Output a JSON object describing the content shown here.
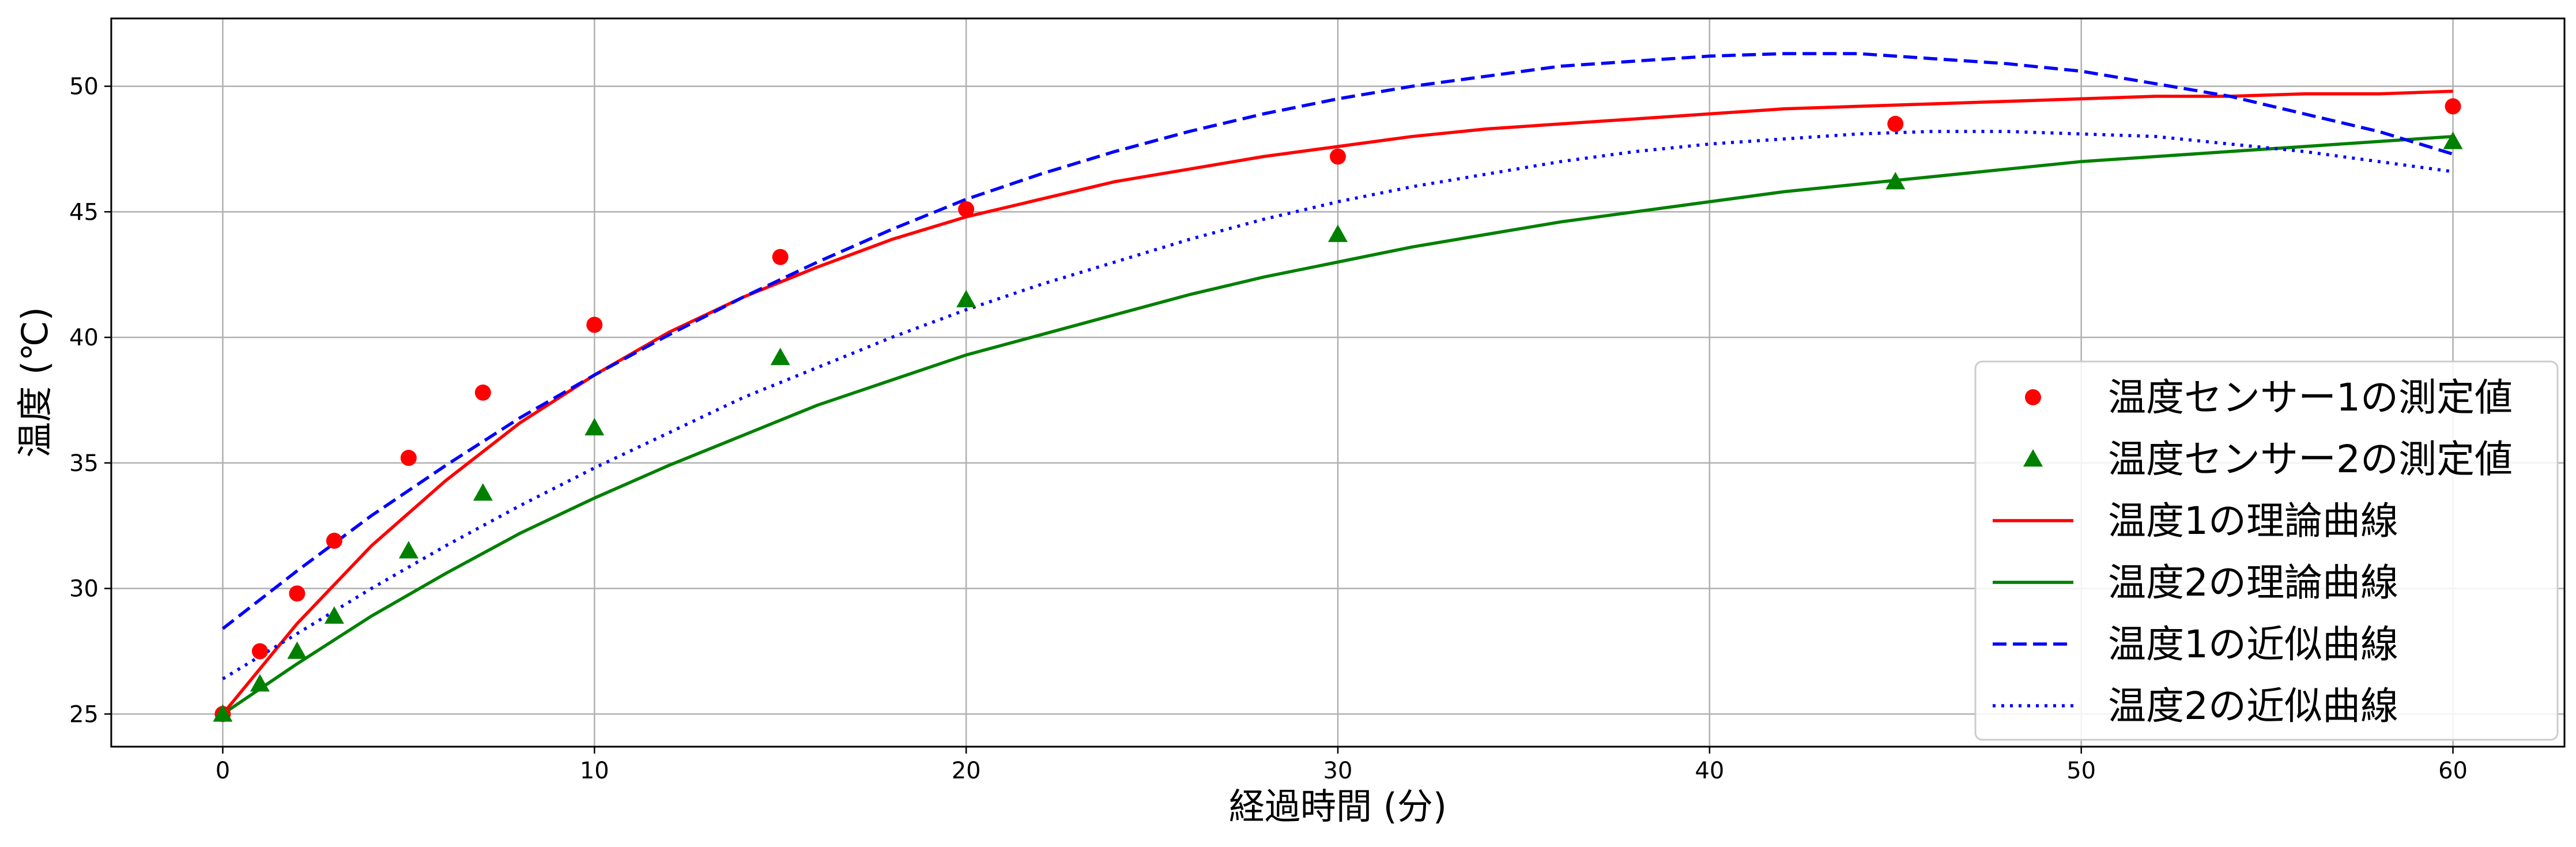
{
  "chart_data": {
    "type": "scatter",
    "title": "",
    "xlabel": "経過時間 (分)",
    "ylabel": "温度 (℃)",
    "xlim": [
      -3,
      63
    ],
    "ylim": [
      23.7,
      52.7
    ],
    "xticks": [
      0,
      10,
      20,
      30,
      40,
      50,
      60
    ],
    "yticks": [
      25,
      30,
      35,
      40,
      45,
      50
    ],
    "grid": true,
    "legend_position": "lower-right",
    "series": [
      {
        "name": "温度センサー1の測定値",
        "kind": "scatter",
        "marker": "circle",
        "color": "#ff0000",
        "x": [
          0,
          1,
          2,
          3,
          5,
          7,
          10,
          15,
          20,
          30,
          45,
          60
        ],
        "y": [
          25.0,
          27.5,
          29.8,
          31.9,
          35.2,
          37.8,
          40.5,
          43.2,
          45.1,
          47.2,
          48.5,
          49.2
        ]
      },
      {
        "name": "温度センサー2の測定値",
        "kind": "scatter",
        "marker": "triangle",
        "color": "#008000",
        "x": [
          0,
          1,
          2,
          3,
          5,
          7,
          10,
          15,
          20,
          30,
          45,
          60
        ],
        "y": [
          25.0,
          26.2,
          27.5,
          28.9,
          31.5,
          33.8,
          36.4,
          39.2,
          41.5,
          44.1,
          46.2,
          47.8
        ]
      },
      {
        "name": "温度1の理論曲線",
        "kind": "line",
        "linestyle": "solid",
        "color": "#ff0000",
        "x": [
          0,
          2,
          4,
          6,
          8,
          10,
          12,
          14,
          16,
          18,
          20,
          22,
          24,
          26,
          28,
          30,
          32,
          34,
          36,
          38,
          40,
          42,
          44,
          46,
          48,
          50,
          52,
          54,
          56,
          58,
          60
        ],
        "y": [
          25.0,
          28.6,
          31.7,
          34.3,
          36.6,
          38.5,
          40.2,
          41.6,
          42.8,
          43.9,
          44.8,
          45.5,
          46.2,
          46.7,
          47.2,
          47.6,
          48.0,
          48.3,
          48.5,
          48.7,
          48.9,
          49.1,
          49.2,
          49.3,
          49.4,
          49.5,
          49.6,
          49.6,
          49.7,
          49.7,
          49.8
        ]
      },
      {
        "name": "温度2の理論曲線",
        "kind": "line",
        "linestyle": "solid",
        "color": "#008000",
        "x": [
          0,
          2,
          4,
          6,
          8,
          10,
          12,
          14,
          16,
          18,
          20,
          22,
          24,
          26,
          28,
          30,
          32,
          34,
          36,
          38,
          40,
          42,
          44,
          46,
          48,
          50,
          52,
          54,
          56,
          58,
          60
        ],
        "y": [
          25.0,
          27.0,
          28.9,
          30.6,
          32.2,
          33.6,
          34.9,
          36.1,
          37.3,
          38.3,
          39.3,
          40.1,
          40.9,
          41.7,
          42.4,
          43.0,
          43.6,
          44.1,
          44.6,
          45.0,
          45.4,
          45.8,
          46.1,
          46.4,
          46.7,
          47.0,
          47.2,
          47.4,
          47.6,
          47.8,
          48.0
        ]
      },
      {
        "name": "温度1の近似曲線",
        "kind": "line",
        "linestyle": "dashed",
        "color": "#0000ff",
        "x": [
          0,
          2,
          4,
          6,
          8,
          10,
          12,
          14,
          16,
          18,
          20,
          22,
          24,
          26,
          28,
          30,
          32,
          34,
          36,
          38,
          40,
          42,
          44,
          46,
          48,
          50,
          52,
          54,
          56,
          58,
          60
        ],
        "y": [
          28.4,
          30.7,
          32.9,
          34.9,
          36.8,
          38.5,
          40.1,
          41.6,
          43.0,
          44.3,
          45.5,
          46.5,
          47.4,
          48.2,
          48.9,
          49.5,
          50.0,
          50.4,
          50.8,
          51.0,
          51.2,
          51.3,
          51.3,
          51.1,
          50.9,
          50.6,
          50.1,
          49.6,
          48.9,
          48.2,
          47.3
        ]
      },
      {
        "name": "温度2の近似曲線",
        "kind": "line",
        "linestyle": "dotted",
        "color": "#0000ff",
        "x": [
          0,
          2,
          4,
          6,
          8,
          10,
          12,
          14,
          16,
          18,
          20,
          22,
          24,
          26,
          28,
          30,
          32,
          34,
          36,
          38,
          40,
          42,
          44,
          46,
          48,
          50,
          52,
          54,
          56,
          58,
          60
        ],
        "y": [
          26.4,
          28.2,
          30.0,
          31.7,
          33.3,
          34.8,
          36.2,
          37.6,
          38.8,
          40.0,
          41.1,
          42.1,
          43.0,
          43.9,
          44.7,
          45.4,
          46.0,
          46.5,
          47.0,
          47.4,
          47.7,
          47.9,
          48.1,
          48.2,
          48.2,
          48.1,
          48.0,
          47.7,
          47.4,
          47.0,
          46.6
        ]
      }
    ]
  }
}
